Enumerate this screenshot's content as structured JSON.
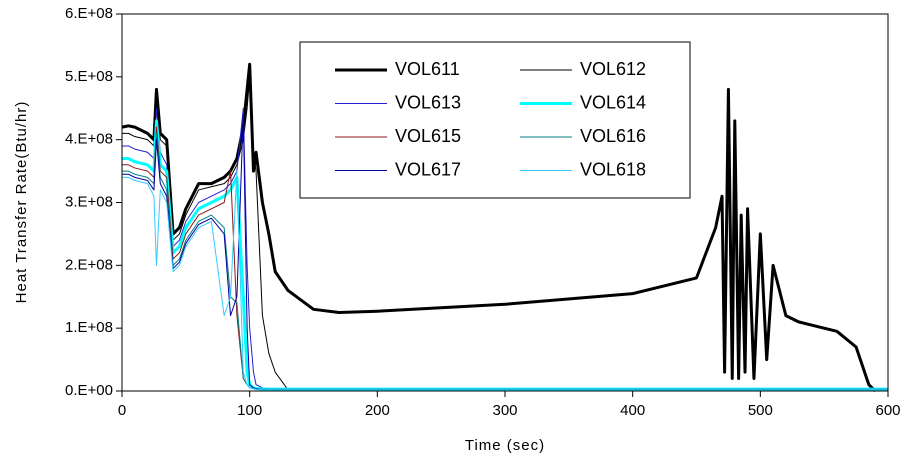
{
  "chart_data": {
    "type": "line",
    "xlabel": "Time (sec)",
    "ylabel": "Heat Transfer Rate(Btu/hr)",
    "xlim": [
      0,
      600
    ],
    "xticks": [
      0,
      100,
      200,
      300,
      400,
      500,
      600
    ],
    "ylim": [
      0,
      600000000
    ],
    "yticks": [
      {
        "value": 0,
        "label": "0.E+00"
      },
      {
        "value": 100000000,
        "label": "1.E+08"
      },
      {
        "value": 200000000,
        "label": "2.E+08"
      },
      {
        "value": 300000000,
        "label": "3.E+08"
      },
      {
        "value": 400000000,
        "label": "4.E+08"
      },
      {
        "value": 500000000,
        "label": "5.E+08"
      },
      {
        "value": 600000000,
        "label": "6.E+08"
      }
    ],
    "grid": false,
    "legend": "top",
    "x": [
      0,
      5,
      10,
      20,
      25,
      27,
      30,
      35,
      40,
      45,
      50,
      60,
      70,
      80,
      85,
      90,
      95,
      98,
      100,
      103,
      105,
      110,
      115,
      120,
      130,
      150,
      170,
      200,
      300,
      400,
      450,
      465,
      470,
      472,
      475,
      478,
      480,
      483,
      485,
      488,
      490,
      495,
      500,
      505,
      510,
      520,
      530,
      540,
      560,
      575,
      585,
      590,
      600
    ],
    "series": [
      {
        "name": "VOL611",
        "color": "#000000",
        "linewidth": 3,
        "values": [
          420000000.0,
          422000000.0,
          420000000.0,
          410000000.0,
          400000000.0,
          480000000.0,
          410000000.0,
          400000000.0,
          250000000.0,
          260000000.0,
          290000000.0,
          330000000.0,
          330000000.0,
          340000000.0,
          350000000.0,
          370000000.0,
          420000000.0,
          480000000.0,
          520000000.0,
          350000000.0,
          380000000.0,
          300000000.0,
          250000000.0,
          190000000.0,
          160000000.0,
          130000000.0,
          125000000.0,
          127000000.0,
          138000000.0,
          155000000.0,
          180000000.0,
          260000000.0,
          310000000.0,
          30000000.0,
          480000000.0,
          20000000.0,
          430000000.0,
          20000000.0,
          280000000.0,
          30000000.0,
          290000000.0,
          20000000.0,
          250000000.0,
          50000000.0,
          200000000.0,
          120000000.0,
          110000000.0,
          105000000.0,
          95000000.0,
          70000000.0,
          10000000.0,
          0,
          null
        ]
      },
      {
        "name": "VOL612",
        "color": "#000000",
        "linewidth": 1,
        "values": [
          410000000.0,
          410000000.0,
          405000000.0,
          400000000.0,
          390000000.0,
          470000000.0,
          400000000.0,
          390000000.0,
          240000000.0,
          250000000.0,
          280000000.0,
          320000000.0,
          325000000.0,
          330000000.0,
          340000000.0,
          360000000.0,
          400000000.0,
          450000000.0,
          500000000.0,
          380000000.0,
          350000000.0,
          120000000.0,
          60000000.0,
          30000000.0,
          2000000.0,
          1000000.0,
          1000000.0,
          1000000.0,
          1000000.0,
          1000000.0,
          1000000.0,
          1000000.0,
          1000000.0,
          1000000.0,
          1000000.0,
          1000000.0,
          1000000.0,
          1000000.0,
          1000000.0,
          1000000.0,
          1000000.0,
          1000000.0,
          1000000.0,
          1000000.0,
          1000000.0,
          1000000.0,
          1000000.0,
          1000000.0,
          1000000.0,
          1000000.0,
          1000000.0,
          1000000.0,
          1000000.0
        ]
      },
      {
        "name": "VOL613",
        "color": "#2222cc",
        "linewidth": 1,
        "values": [
          390000000.0,
          390000000.0,
          385000000.0,
          380000000.0,
          370000000.0,
          450000000.0,
          380000000.0,
          360000000.0,
          230000000.0,
          240000000.0,
          270000000.0,
          300000000.0,
          310000000.0,
          320000000.0,
          330000000.0,
          350000000.0,
          450000000.0,
          200000000.0,
          100000000.0,
          30000000.0,
          10000000.0,
          5000000.0,
          4000000.0,
          3000000.0,
          3000000.0,
          3000000.0,
          3000000.0,
          3000000.0,
          3000000.0,
          3000000.0,
          3000000.0,
          3000000.0,
          3000000.0,
          3000000.0,
          3000000.0,
          3000000.0,
          3000000.0,
          3000000.0,
          3000000.0,
          3000000.0,
          3000000.0,
          3000000.0,
          3000000.0,
          3000000.0,
          3000000.0,
          3000000.0,
          3000000.0,
          3000000.0,
          3000000.0,
          3000000.0,
          3000000.0,
          3000000.0,
          3000000.0
        ]
      },
      {
        "name": "VOL614",
        "color": "#00ffff",
        "linewidth": 3,
        "values": [
          370000000.0,
          370000000.0,
          365000000.0,
          360000000.0,
          350000000.0,
          430000000.0,
          360000000.0,
          350000000.0,
          220000000.0,
          230000000.0,
          260000000.0,
          290000000.0,
          300000000.0,
          310000000.0,
          320000000.0,
          340000000.0,
          150000000.0,
          30000000.0,
          10000000.0,
          5000000.0,
          4000000.0,
          3000000.0,
          3000000.0,
          3000000.0,
          3000000.0,
          3000000.0,
          3000000.0,
          3000000.0,
          3000000.0,
          3000000.0,
          3000000.0,
          3000000.0,
          3000000.0,
          3000000.0,
          3000000.0,
          3000000.0,
          3000000.0,
          3000000.0,
          3000000.0,
          3000000.0,
          3000000.0,
          3000000.0,
          3000000.0,
          3000000.0,
          3000000.0,
          3000000.0,
          3000000.0,
          3000000.0,
          3000000.0,
          3000000.0,
          3000000.0,
          3000000.0,
          3000000.0
        ]
      },
      {
        "name": "VOL615",
        "color": "#8b1a1a",
        "linewidth": 1,
        "values": [
          360000000.0,
          360000000.0,
          355000000.0,
          350000000.0,
          340000000.0,
          420000000.0,
          350000000.0,
          340000000.0,
          210000000.0,
          220000000.0,
          250000000.0,
          280000000.0,
          290000000.0,
          300000000.0,
          350000000.0,
          120000000.0,
          20000000.0,
          10000000.0,
          5000000.0,
          4000000.0,
          3000000.0,
          3000000.0,
          3000000.0,
          3000000.0,
          3000000.0,
          3000000.0,
          3000000.0,
          3000000.0,
          3000000.0,
          3000000.0,
          3000000.0,
          3000000.0,
          3000000.0,
          3000000.0,
          3000000.0,
          3000000.0,
          3000000.0,
          3000000.0,
          3000000.0,
          3000000.0,
          3000000.0,
          3000000.0,
          3000000.0,
          3000000.0,
          3000000.0,
          3000000.0,
          3000000.0,
          3000000.0,
          3000000.0,
          3000000.0,
          3000000.0,
          3000000.0,
          3000000.0
        ]
      },
      {
        "name": "VOL616",
        "color": "#008080",
        "linewidth": 1,
        "values": [
          350000000.0,
          350000000.0,
          345000000.0,
          340000000.0,
          330000000.0,
          410000000.0,
          340000000.0,
          320000000.0,
          200000000.0,
          210000000.0,
          240000000.0,
          270000000.0,
          280000000.0,
          260000000.0,
          150000000.0,
          140000000.0,
          20000000.0,
          10000000.0,
          5000000.0,
          4000000.0,
          3000000.0,
          3000000.0,
          3000000.0,
          3000000.0,
          3000000.0,
          3000000.0,
          3000000.0,
          3000000.0,
          3000000.0,
          3000000.0,
          3000000.0,
          3000000.0,
          3000000.0,
          3000000.0,
          3000000.0,
          3000000.0,
          3000000.0,
          3000000.0,
          3000000.0,
          3000000.0,
          3000000.0,
          3000000.0,
          3000000.0,
          3000000.0,
          3000000.0,
          3000000.0,
          3000000.0,
          3000000.0,
          3000000.0,
          3000000.0,
          3000000.0,
          3000000.0,
          3000000.0
        ]
      },
      {
        "name": "VOL617",
        "color": "#0000a0",
        "linewidth": 1,
        "values": [
          345000000.0,
          345000000.0,
          340000000.0,
          335000000.0,
          320000000.0,
          400000000.0,
          330000000.0,
          310000000.0,
          195000000.0,
          205000000.0,
          235000000.0,
          265000000.0,
          275000000.0,
          250000000.0,
          120000000.0,
          150000000.0,
          440000000.0,
          100000000.0,
          10000000.0,
          5000000.0,
          4000000.0,
          3000000.0,
          3000000.0,
          3000000.0,
          3000000.0,
          3000000.0,
          3000000.0,
          3000000.0,
          3000000.0,
          3000000.0,
          3000000.0,
          3000000.0,
          3000000.0,
          3000000.0,
          3000000.0,
          3000000.0,
          3000000.0,
          3000000.0,
          3000000.0,
          3000000.0,
          3000000.0,
          3000000.0,
          3000000.0,
          3000000.0,
          3000000.0,
          3000000.0,
          3000000.0,
          3000000.0,
          3000000.0,
          3000000.0,
          3000000.0,
          3000000.0,
          3000000.0
        ]
      },
      {
        "name": "VOL618",
        "color": "#33ccff",
        "linewidth": 1,
        "values": [
          340000000.0,
          340000000.0,
          335000000.0,
          330000000.0,
          310000000.0,
          200000000.0,
          320000000.0,
          300000000.0,
          190000000.0,
          200000000.0,
          230000000.0,
          260000000.0,
          270000000.0,
          120000000.0,
          150000000.0,
          350000000.0,
          30000000.0,
          10000000.0,
          5000000.0,
          4000000.0,
          3000000.0,
          3000000.0,
          3000000.0,
          3000000.0,
          3000000.0,
          3000000.0,
          3000000.0,
          3000000.0,
          3000000.0,
          3000000.0,
          3000000.0,
          3000000.0,
          3000000.0,
          3000000.0,
          3000000.0,
          3000000.0,
          3000000.0,
          3000000.0,
          3000000.0,
          3000000.0,
          3000000.0,
          3000000.0,
          3000000.0,
          3000000.0,
          3000000.0,
          3000000.0,
          3000000.0,
          3000000.0,
          3000000.0,
          3000000.0,
          3000000.0,
          3000000.0,
          3000000.0
        ]
      }
    ]
  }
}
